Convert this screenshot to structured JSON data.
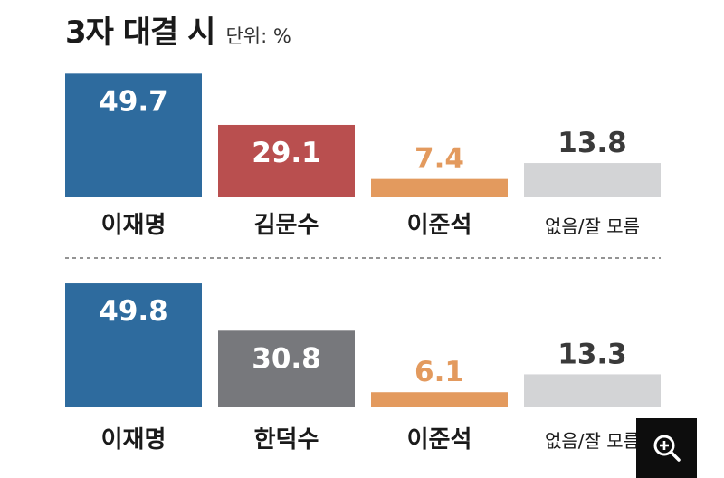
{
  "header": {
    "title": "3자 대결 시",
    "unit": "단위: %"
  },
  "colors": {
    "이재명": "#2e6b9e",
    "김문수": "#b94f4f",
    "한덕수": "#77787c",
    "이준석": "#e39a5e",
    "없음/잘 모름": "#d3d4d6"
  },
  "chart_data": [
    {
      "type": "bar",
      "categories": [
        "이재명",
        "김문수",
        "이준석",
        "없음/잘 모름"
      ],
      "values": [
        49.7,
        29.1,
        7.4,
        13.8
      ]
    },
    {
      "type": "bar",
      "categories": [
        "이재명",
        "한덕수",
        "이준석",
        "없음/잘 모름"
      ],
      "values": [
        49.8,
        30.8,
        6.1,
        13.3
      ]
    }
  ],
  "zoom_icon": "zoom-in-icon"
}
